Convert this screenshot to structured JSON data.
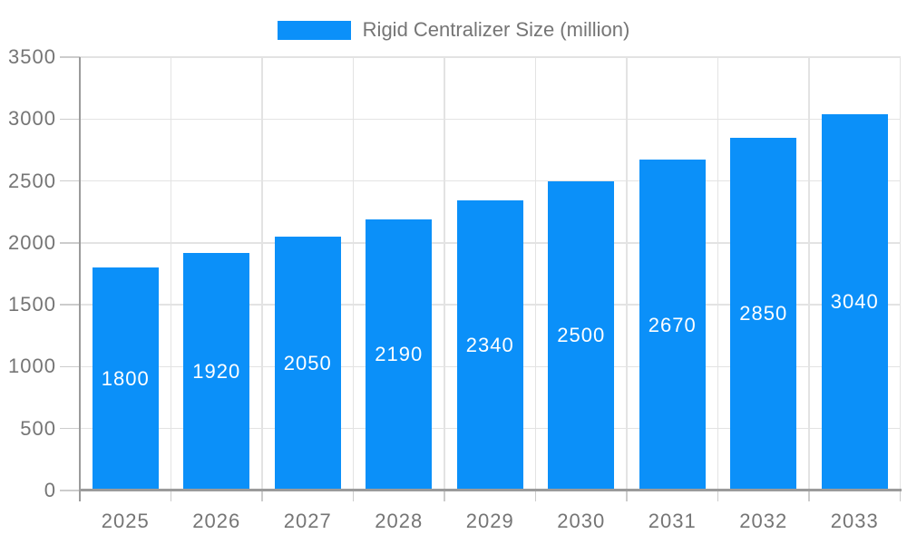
{
  "chart_data": {
    "type": "bar",
    "title": "",
    "categories": [
      "2025",
      "2026",
      "2027",
      "2028",
      "2029",
      "2030",
      "2031",
      "2032",
      "2033"
    ],
    "series": [
      {
        "name": "Rigid Centralizer Size (million)",
        "values": [
          1800,
          1920,
          2050,
          2190,
          2340,
          2500,
          2670,
          2850,
          3040
        ]
      }
    ],
    "xlabel": "",
    "ylabel": "",
    "ylim": [
      0,
      3500
    ],
    "ytick_step": 500,
    "y_tick_labels": [
      "0",
      "500",
      "1000",
      "1500",
      "2000",
      "2500",
      "3000",
      "3500"
    ],
    "grid": true,
    "legend_position": "top",
    "bar_labels_inside": true,
    "colors": {
      "bar": "#0b90f9",
      "bar_value_label": "#ffffff",
      "axis_label": "#757575",
      "axis_line": "#9b9b9b",
      "gridline": "#e3e3e3",
      "tick": "#cccccc",
      "background": "#ffffff"
    }
  }
}
